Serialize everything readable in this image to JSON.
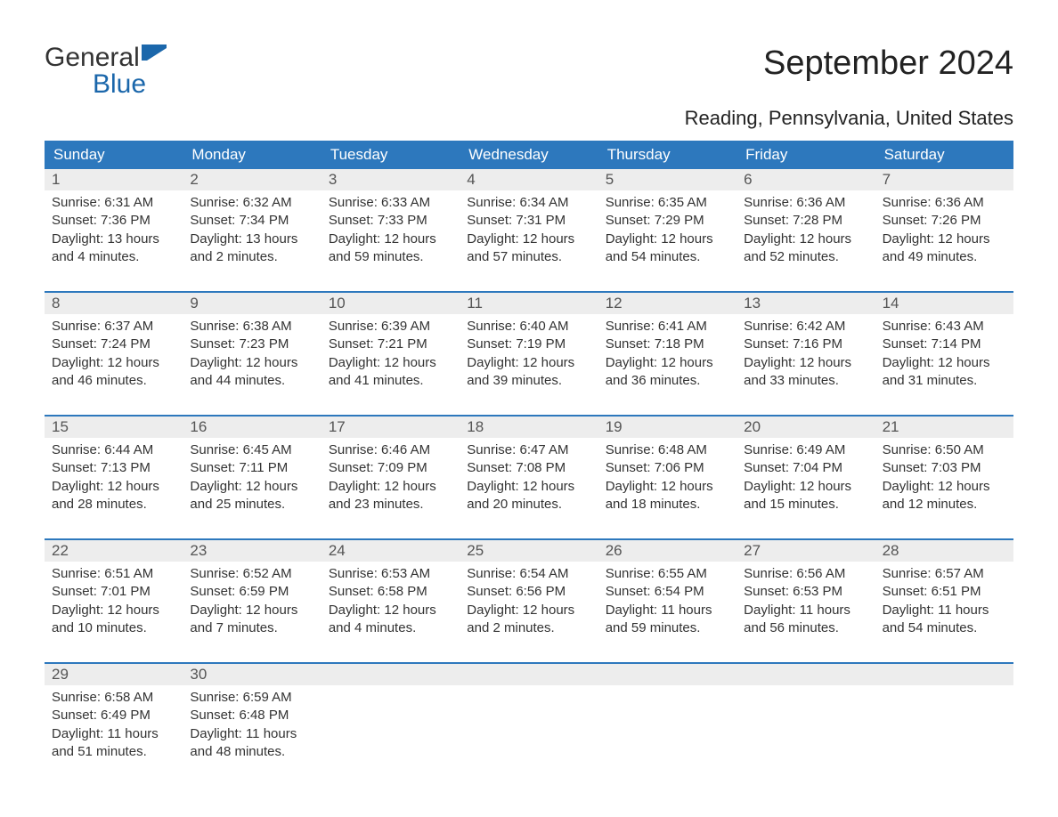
{
  "brand": {
    "part1": "General",
    "part2": "Blue",
    "accent_color": "#1b67ab"
  },
  "title": "September 2024",
  "location": "Reading, Pennsylvania, United States",
  "colors": {
    "header_bg": "#2d78bd",
    "header_fg": "#ffffff",
    "daynum_bg": "#ededed",
    "daynum_fg": "#555555",
    "rule": "#2d78bd",
    "body_text": "#333333",
    "page_bg": "#ffffff"
  },
  "typography": {
    "title_fontsize_pt": 29,
    "location_fontsize_pt": 17,
    "weekday_fontsize_pt": 13,
    "daynum_fontsize_pt": 13,
    "body_fontsize_pt": 11,
    "font_family": "Arial"
  },
  "weekdays": [
    "Sunday",
    "Monday",
    "Tuesday",
    "Wednesday",
    "Thursday",
    "Friday",
    "Saturday"
  ],
  "weeks": [
    [
      {
        "day": "1",
        "sunrise": "Sunrise: 6:31 AM",
        "sunset": "Sunset: 7:36 PM",
        "dl1": "Daylight: 13 hours",
        "dl2": "and 4 minutes."
      },
      {
        "day": "2",
        "sunrise": "Sunrise: 6:32 AM",
        "sunset": "Sunset: 7:34 PM",
        "dl1": "Daylight: 13 hours",
        "dl2": "and 2 minutes."
      },
      {
        "day": "3",
        "sunrise": "Sunrise: 6:33 AM",
        "sunset": "Sunset: 7:33 PM",
        "dl1": "Daylight: 12 hours",
        "dl2": "and 59 minutes."
      },
      {
        "day": "4",
        "sunrise": "Sunrise: 6:34 AM",
        "sunset": "Sunset: 7:31 PM",
        "dl1": "Daylight: 12 hours",
        "dl2": "and 57 minutes."
      },
      {
        "day": "5",
        "sunrise": "Sunrise: 6:35 AM",
        "sunset": "Sunset: 7:29 PM",
        "dl1": "Daylight: 12 hours",
        "dl2": "and 54 minutes."
      },
      {
        "day": "6",
        "sunrise": "Sunrise: 6:36 AM",
        "sunset": "Sunset: 7:28 PM",
        "dl1": "Daylight: 12 hours",
        "dl2": "and 52 minutes."
      },
      {
        "day": "7",
        "sunrise": "Sunrise: 6:36 AM",
        "sunset": "Sunset: 7:26 PM",
        "dl1": "Daylight: 12 hours",
        "dl2": "and 49 minutes."
      }
    ],
    [
      {
        "day": "8",
        "sunrise": "Sunrise: 6:37 AM",
        "sunset": "Sunset: 7:24 PM",
        "dl1": "Daylight: 12 hours",
        "dl2": "and 46 minutes."
      },
      {
        "day": "9",
        "sunrise": "Sunrise: 6:38 AM",
        "sunset": "Sunset: 7:23 PM",
        "dl1": "Daylight: 12 hours",
        "dl2": "and 44 minutes."
      },
      {
        "day": "10",
        "sunrise": "Sunrise: 6:39 AM",
        "sunset": "Sunset: 7:21 PM",
        "dl1": "Daylight: 12 hours",
        "dl2": "and 41 minutes."
      },
      {
        "day": "11",
        "sunrise": "Sunrise: 6:40 AM",
        "sunset": "Sunset: 7:19 PM",
        "dl1": "Daylight: 12 hours",
        "dl2": "and 39 minutes."
      },
      {
        "day": "12",
        "sunrise": "Sunrise: 6:41 AM",
        "sunset": "Sunset: 7:18 PM",
        "dl1": "Daylight: 12 hours",
        "dl2": "and 36 minutes."
      },
      {
        "day": "13",
        "sunrise": "Sunrise: 6:42 AM",
        "sunset": "Sunset: 7:16 PM",
        "dl1": "Daylight: 12 hours",
        "dl2": "and 33 minutes."
      },
      {
        "day": "14",
        "sunrise": "Sunrise: 6:43 AM",
        "sunset": "Sunset: 7:14 PM",
        "dl1": "Daylight: 12 hours",
        "dl2": "and 31 minutes."
      }
    ],
    [
      {
        "day": "15",
        "sunrise": "Sunrise: 6:44 AM",
        "sunset": "Sunset: 7:13 PM",
        "dl1": "Daylight: 12 hours",
        "dl2": "and 28 minutes."
      },
      {
        "day": "16",
        "sunrise": "Sunrise: 6:45 AM",
        "sunset": "Sunset: 7:11 PM",
        "dl1": "Daylight: 12 hours",
        "dl2": "and 25 minutes."
      },
      {
        "day": "17",
        "sunrise": "Sunrise: 6:46 AM",
        "sunset": "Sunset: 7:09 PM",
        "dl1": "Daylight: 12 hours",
        "dl2": "and 23 minutes."
      },
      {
        "day": "18",
        "sunrise": "Sunrise: 6:47 AM",
        "sunset": "Sunset: 7:08 PM",
        "dl1": "Daylight: 12 hours",
        "dl2": "and 20 minutes."
      },
      {
        "day": "19",
        "sunrise": "Sunrise: 6:48 AM",
        "sunset": "Sunset: 7:06 PM",
        "dl1": "Daylight: 12 hours",
        "dl2": "and 18 minutes."
      },
      {
        "day": "20",
        "sunrise": "Sunrise: 6:49 AM",
        "sunset": "Sunset: 7:04 PM",
        "dl1": "Daylight: 12 hours",
        "dl2": "and 15 minutes."
      },
      {
        "day": "21",
        "sunrise": "Sunrise: 6:50 AM",
        "sunset": "Sunset: 7:03 PM",
        "dl1": "Daylight: 12 hours",
        "dl2": "and 12 minutes."
      }
    ],
    [
      {
        "day": "22",
        "sunrise": "Sunrise: 6:51 AM",
        "sunset": "Sunset: 7:01 PM",
        "dl1": "Daylight: 12 hours",
        "dl2": "and 10 minutes."
      },
      {
        "day": "23",
        "sunrise": "Sunrise: 6:52 AM",
        "sunset": "Sunset: 6:59 PM",
        "dl1": "Daylight: 12 hours",
        "dl2": "and 7 minutes."
      },
      {
        "day": "24",
        "sunrise": "Sunrise: 6:53 AM",
        "sunset": "Sunset: 6:58 PM",
        "dl1": "Daylight: 12 hours",
        "dl2": "and 4 minutes."
      },
      {
        "day": "25",
        "sunrise": "Sunrise: 6:54 AM",
        "sunset": "Sunset: 6:56 PM",
        "dl1": "Daylight: 12 hours",
        "dl2": "and 2 minutes."
      },
      {
        "day": "26",
        "sunrise": "Sunrise: 6:55 AM",
        "sunset": "Sunset: 6:54 PM",
        "dl1": "Daylight: 11 hours",
        "dl2": "and 59 minutes."
      },
      {
        "day": "27",
        "sunrise": "Sunrise: 6:56 AM",
        "sunset": "Sunset: 6:53 PM",
        "dl1": "Daylight: 11 hours",
        "dl2": "and 56 minutes."
      },
      {
        "day": "28",
        "sunrise": "Sunrise: 6:57 AM",
        "sunset": "Sunset: 6:51 PM",
        "dl1": "Daylight: 11 hours",
        "dl2": "and 54 minutes."
      }
    ],
    [
      {
        "day": "29",
        "sunrise": "Sunrise: 6:58 AM",
        "sunset": "Sunset: 6:49 PM",
        "dl1": "Daylight: 11 hours",
        "dl2": "and 51 minutes."
      },
      {
        "day": "30",
        "sunrise": "Sunrise: 6:59 AM",
        "sunset": "Sunset: 6:48 PM",
        "dl1": "Daylight: 11 hours",
        "dl2": "and 48 minutes."
      },
      null,
      null,
      null,
      null,
      null
    ]
  ]
}
